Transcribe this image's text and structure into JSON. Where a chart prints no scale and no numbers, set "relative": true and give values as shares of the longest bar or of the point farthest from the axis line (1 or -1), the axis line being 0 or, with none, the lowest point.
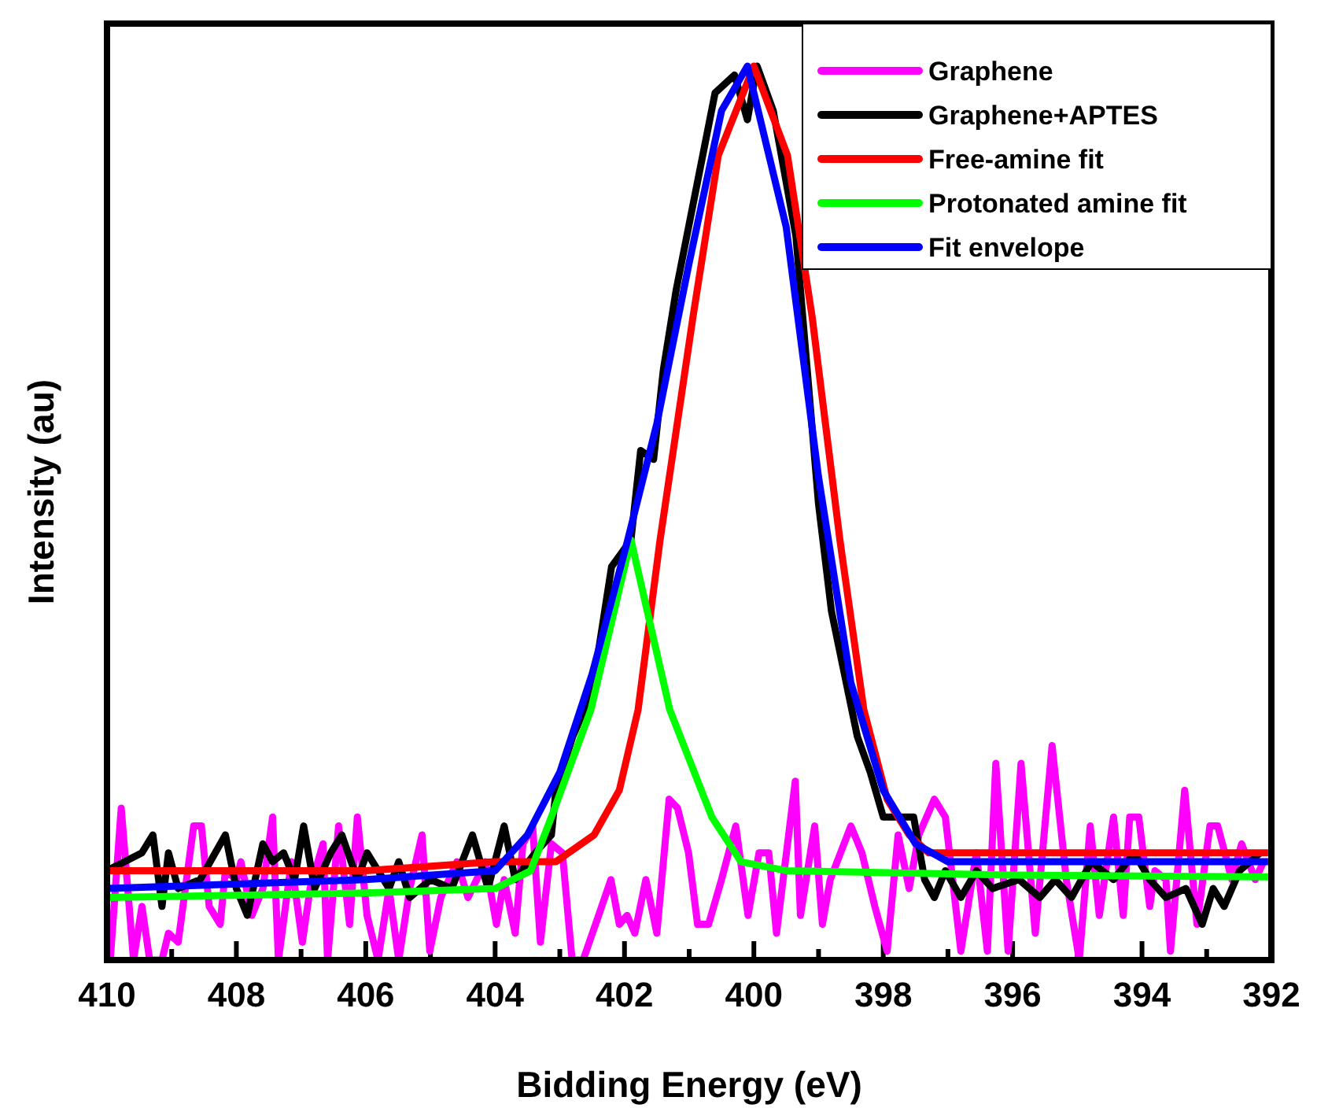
{
  "chart_data": {
    "type": "line",
    "relative": true,
    "xlabel": "Bidding Energy (eV)",
    "ylabel": "Intensity (au)",
    "xlim": [
      410,
      392
    ],
    "xticks": [
      410,
      {
        "value": 409,
        "label": null
      },
      408,
      {
        "value": 407,
        "label": null
      },
      406,
      {
        "value": 405,
        "label": null
      },
      404,
      {
        "value": 403,
        "label": null
      },
      402,
      {
        "value": 401,
        "label": null
      },
      400,
      {
        "value": 399,
        "label": null
      },
      398,
      {
        "value": 397,
        "label": null
      },
      396,
      {
        "value": 395,
        "label": null
      },
      394,
      {
        "value": 393,
        "label": null
      },
      392
    ],
    "legend": "top right",
    "grid": false,
    "marker": "none",
    "line_style": "solid",
    "series": [
      {
        "name": "Graphene",
        "color": "#ff00ff",
        "x": [
          409.95,
          409.78,
          409.59,
          409.46,
          409.34,
          409.15,
          409.05,
          408.9,
          408.66,
          408.54,
          408.42,
          408.25,
          408.17,
          408.0,
          407.93,
          407.76,
          407.59,
          407.44,
          407.35,
          407.15,
          406.98,
          406.86,
          406.66,
          406.59,
          406.42,
          406.25,
          406.13,
          405.98,
          405.81,
          405.64,
          405.49,
          405.32,
          405.13,
          405.01,
          404.84,
          404.59,
          404.42,
          404.15,
          403.98,
          403.86,
          403.69,
          403.57,
          403.42,
          403.3,
          403.13,
          402.96,
          402.81,
          402.64,
          402.4,
          402.21,
          402.08,
          401.96,
          401.84,
          401.67,
          401.5,
          401.31,
          401.18,
          401.01,
          400.87,
          400.7,
          400.5,
          400.28,
          400.09,
          399.92,
          399.77,
          399.65,
          399.36,
          399.28,
          399.06,
          398.94,
          398.82,
          398.5,
          398.33,
          398.13,
          397.94,
          397.77,
          397.6,
          397.45,
          397.21,
          397.04,
          396.8,
          396.56,
          396.39,
          396.26,
          396.07,
          395.87,
          395.65,
          395.39,
          395.17,
          394.97,
          394.8,
          394.66,
          394.44,
          394.29,
          394.19,
          394.05,
          393.88,
          393.8,
          393.63,
          393.56,
          393.34,
          393.15,
          392.95,
          392.83,
          392.61,
          392.46,
          392.25,
          392.12
        ],
        "values": [
          0,
          0.17,
          0,
          0.06,
          0,
          0,
          0.03,
          0.02,
          0.15,
          0.15,
          0.06,
          0.04,
          0.1,
          0.09,
          0.11,
          0.05,
          0.08,
          0.16,
          0,
          0.11,
          0.02,
          0.08,
          0.13,
          0,
          0.15,
          0.04,
          0.16,
          0.05,
          0,
          0.08,
          0,
          0.08,
          0.14,
          0.01,
          0.07,
          0.11,
          0.07,
          0.11,
          0.04,
          0.09,
          0.03,
          0.13,
          0.15,
          0.02,
          0.13,
          0.12,
          0,
          0,
          0.05,
          0.09,
          0.04,
          0.05,
          0.03,
          0.09,
          0.03,
          0.18,
          0.17,
          0.12,
          0.04,
          0.04,
          0.09,
          0.15,
          0.05,
          0.12,
          0.12,
          0.03,
          0.2,
          0.05,
          0.15,
          0.04,
          0.09,
          0.15,
          0.12,
          0.06,
          0.01,
          0.14,
          0.08,
          0.14,
          0.18,
          0.16,
          0.01,
          0.12,
          0.01,
          0.22,
          0.01,
          0.22,
          0.03,
          0.24,
          0.09,
          0,
          0.15,
          0.05,
          0.16,
          0.05,
          0.16,
          0.16,
          0.06,
          0.1,
          0.09,
          0.01,
          0.19,
          0.04,
          0.15,
          0.15,
          0.09,
          0.13,
          0.09,
          0.11
        ]
      },
      {
        "name": "Graphene+APTES",
        "color": "#000000",
        "x": [
          410.0,
          409.46,
          409.29,
          409.15,
          409.05,
          408.9,
          408.56,
          408.17,
          408.0,
          407.83,
          407.59,
          407.44,
          407.27,
          407.1,
          406.96,
          406.79,
          406.54,
          406.37,
          406.13,
          405.98,
          405.64,
          405.49,
          405.32,
          405.0,
          404.67,
          404.35,
          404.11,
          403.86,
          403.69,
          403.38,
          403.13,
          403.06,
          402.8,
          402.5,
          402.2,
          401.9,
          401.75,
          401.55,
          401.4,
          401.2,
          400.9,
          400.6,
          400.3,
          400.1,
          399.95,
          399.7,
          399.35,
          399.0,
          398.8,
          398.6,
          398.4,
          398.2,
          398.0,
          397.53,
          397.36,
          397.21,
          397.04,
          396.8,
          396.56,
          396.31,
          395.9,
          395.58,
          395.34,
          395.09,
          394.78,
          394.44,
          394.12,
          393.88,
          393.63,
          393.32,
          393.07,
          392.9,
          392.73,
          392.49,
          392.17
        ],
        "values": [
          0.1,
          0.12,
          0.14,
          0.06,
          0.12,
          0.08,
          0.09,
          0.14,
          0.08,
          0.05,
          0.13,
          0.11,
          0.12,
          0.09,
          0.15,
          0.08,
          0.12,
          0.14,
          0.09,
          0.12,
          0.08,
          0.11,
          0.07,
          0.09,
          0.08,
          0.14,
          0.08,
          0.15,
          0.09,
          0.12,
          0.14,
          0.19,
          0.25,
          0.3,
          0.44,
          0.47,
          0.57,
          0.56,
          0.66,
          0.75,
          0.86,
          0.97,
          0.99,
          0.94,
          1.0,
          0.95,
          0.81,
          0.51,
          0.39,
          0.32,
          0.25,
          0.21,
          0.16,
          0.16,
          0.09,
          0.07,
          0.1,
          0.07,
          0.1,
          0.08,
          0.09,
          0.07,
          0.09,
          0.07,
          0.11,
          0.09,
          0.12,
          0.09,
          0.07,
          0.08,
          0.04,
          0.08,
          0.06,
          0.1,
          0.12
        ]
      },
      {
        "name": "Free-amine fit",
        "color": "#ff0000",
        "x": [
          410,
          408,
          406,
          404,
          403.06,
          402.47,
          402.08,
          401.79,
          401.45,
          400.94,
          400.55,
          400.0,
          399.48,
          399.1,
          398.67,
          398.3,
          397.94,
          397.6,
          397.3,
          396,
          394,
          392.05
        ],
        "values": [
          0.1,
          0.1,
          0.1,
          0.11,
          0.11,
          0.14,
          0.19,
          0.28,
          0.47,
          0.72,
          0.9,
          1.0,
          0.9,
          0.72,
          0.47,
          0.28,
          0.18,
          0.14,
          0.12,
          0.12,
          0.12,
          0.12
        ]
      },
      {
        "name": "Protonated amine fit",
        "color": "#00ff00",
        "x": [
          410,
          406,
          404,
          403.45,
          403.13,
          402.52,
          401.9,
          401.3,
          400.65,
          400.2,
          399.5,
          396,
          392.05
        ],
        "values": [
          0.07,
          0.075,
          0.08,
          0.1,
          0.16,
          0.28,
          0.47,
          0.28,
          0.16,
          0.11,
          0.1,
          0.095,
          0.093
        ]
      },
      {
        "name": "Fit envelope",
        "color": "#0000ff",
        "x": [
          410,
          406,
          404,
          403.5,
          403,
          402.5,
          401.95,
          401.5,
          401,
          400.5,
          400.1,
          399.5,
          399,
          398.5,
          398,
          397.5,
          397,
          396,
          392.05
        ],
        "values": [
          0.08,
          0.09,
          0.1,
          0.14,
          0.21,
          0.32,
          0.47,
          0.6,
          0.78,
          0.95,
          1.0,
          0.82,
          0.54,
          0.31,
          0.19,
          0.13,
          0.11,
          0.11,
          0.11
        ]
      }
    ]
  }
}
